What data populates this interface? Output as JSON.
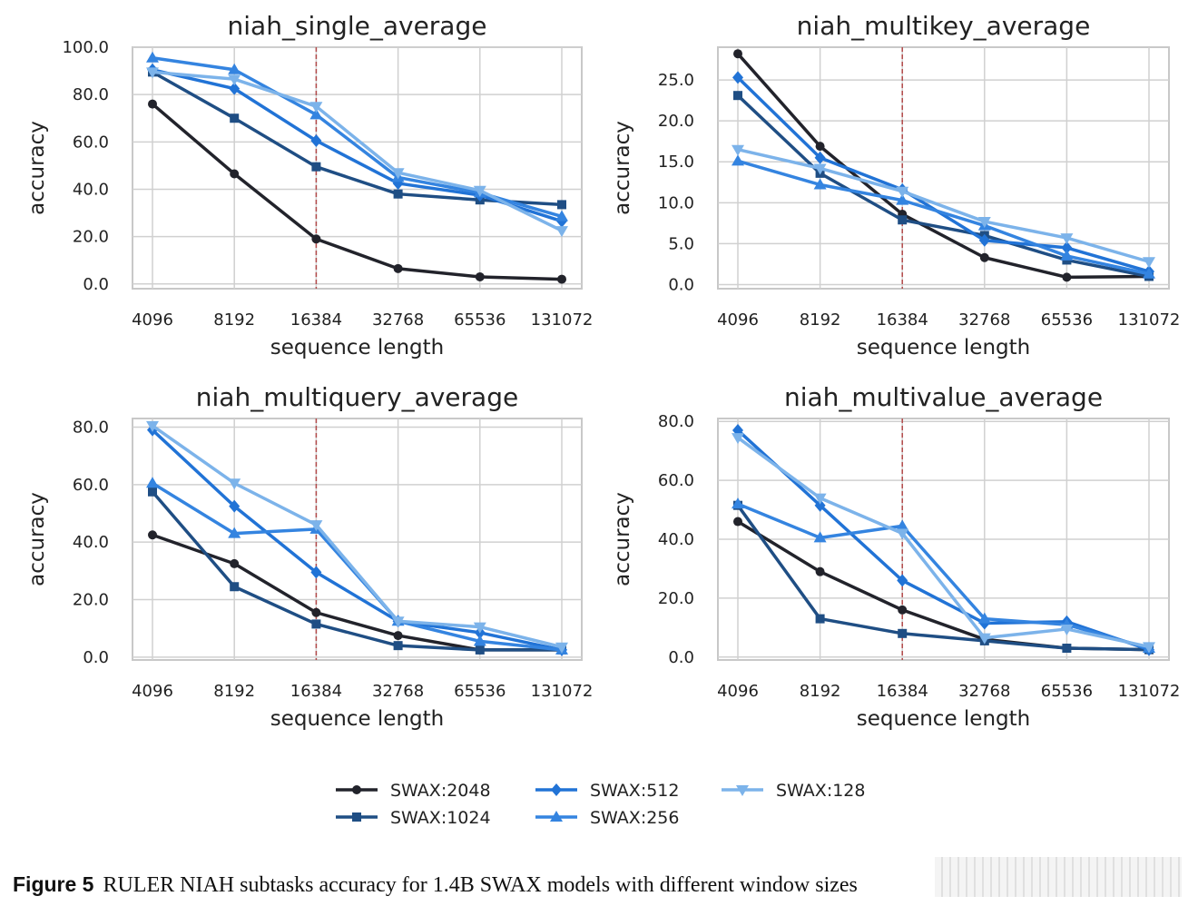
{
  "colors": {
    "SWAX:2048": "#22232b",
    "SWAX:1024": "#1f4e84",
    "SWAX:512": "#2173d6",
    "SWAX:256": "#3484e0",
    "SWAX:128": "#7cb3ea",
    "refline": "#b24a4a",
    "grid": "#d0d0d0",
    "frame": "#c8c8c8"
  },
  "legend": {
    "entries": [
      {
        "label": "SWAX:2048",
        "marker": "circle"
      },
      {
        "label": "SWAX:1024",
        "marker": "square"
      },
      {
        "label": "SWAX:512",
        "marker": "diamond"
      },
      {
        "label": "SWAX:256",
        "marker": "triangle-up"
      },
      {
        "label": "SWAX:128",
        "marker": "triangle-down"
      }
    ]
  },
  "caption": {
    "label": "Figure 5",
    "text": "RULER NIAH subtasks accuracy for 1.4B SWAX models with different window sizes"
  },
  "chart_data": [
    {
      "type": "line",
      "title": "niah_single_average",
      "xlabel": "sequence length",
      "ylabel": "accuracy",
      "categories": [
        "4096",
        "8192",
        "16384",
        "32768",
        "65536",
        "131072"
      ],
      "ylim": [
        -2,
        100
      ],
      "yticks": [
        0.0,
        20.0,
        40.0,
        60.0,
        80.0,
        100.0
      ],
      "ytick_labels": [
        "0.0",
        "20.0",
        "40.0",
        "60.0",
        "80.0",
        "100.0"
      ],
      "vline_category": "16384",
      "series": [
        {
          "name": "SWAX:2048",
          "values": [
            76,
            46.5,
            19,
            6.5,
            3,
            2
          ]
        },
        {
          "name": "SWAX:1024",
          "values": [
            89.5,
            70,
            49.5,
            38,
            35.5,
            33.5
          ]
        },
        {
          "name": "SWAX:512",
          "values": [
            90.5,
            82.5,
            60.5,
            42.5,
            37.5,
            26.5
          ]
        },
        {
          "name": "SWAX:256",
          "values": [
            95.5,
            90.5,
            71.5,
            45,
            38.5,
            28.5
          ]
        },
        {
          "name": "SWAX:128",
          "values": [
            89.5,
            86.5,
            75,
            47,
            39.5,
            22.5
          ]
        }
      ]
    },
    {
      "type": "line",
      "title": "niah_multikey_average",
      "xlabel": "sequence length",
      "ylabel": "accuracy",
      "categories": [
        "4096",
        "8192",
        "16384",
        "32768",
        "65536",
        "131072"
      ],
      "ylim": [
        -0.5,
        29
      ],
      "yticks": [
        0.0,
        5.0,
        10.0,
        15.0,
        20.0,
        25.0
      ],
      "ytick_labels": [
        "0.0",
        "5.0",
        "10.0",
        "15.0",
        "20.0",
        "25.0"
      ],
      "vline_category": "16384",
      "series": [
        {
          "name": "SWAX:2048",
          "values": [
            28.2,
            16.9,
            8.6,
            3.3,
            0.9,
            1
          ]
        },
        {
          "name": "SWAX:1024",
          "values": [
            23.1,
            13.6,
            7.9,
            6,
            3,
            1
          ]
        },
        {
          "name": "SWAX:512",
          "values": [
            25.3,
            15.5,
            11.6,
            5.4,
            4.5,
            1.6
          ]
        },
        {
          "name": "SWAX:256",
          "values": [
            15.1,
            12.2,
            10.3,
            7.2,
            3.5,
            1.3
          ]
        },
        {
          "name": "SWAX:128",
          "values": [
            16.5,
            14.2,
            11.4,
            7.7,
            5.7,
            2.8
          ]
        }
      ]
    },
    {
      "type": "line",
      "title": "niah_multiquery_average",
      "xlabel": "sequence length",
      "ylabel": "accuracy",
      "categories": [
        "4096",
        "8192",
        "16384",
        "32768",
        "65536",
        "131072"
      ],
      "ylim": [
        -1,
        83
      ],
      "yticks": [
        0.0,
        20.0,
        40.0,
        60.0,
        80.0
      ],
      "ytick_labels": [
        "0.0",
        "20.0",
        "40.0",
        "60.0",
        "80.0"
      ],
      "vline_category": "16384",
      "series": [
        {
          "name": "SWAX:2048",
          "values": [
            42.5,
            32.5,
            15.5,
            7.5,
            2.5,
            2.5
          ]
        },
        {
          "name": "SWAX:1024",
          "values": [
            57.5,
            24.5,
            11.5,
            4,
            2.5,
            2.5
          ]
        },
        {
          "name": "SWAX:512",
          "values": [
            79,
            52.5,
            29.5,
            12.5,
            8.5,
            2.5
          ]
        },
        {
          "name": "SWAX:256",
          "values": [
            60.5,
            43,
            44.5,
            12.5,
            5.5,
            2.5
          ]
        },
        {
          "name": "SWAX:128",
          "values": [
            80.5,
            60.5,
            46,
            12.5,
            10.5,
            3.5
          ]
        }
      ]
    },
    {
      "type": "line",
      "title": "niah_multivalue_average",
      "xlabel": "sequence length",
      "ylabel": "accuracy",
      "categories": [
        "4096",
        "8192",
        "16384",
        "32768",
        "65536",
        "131072"
      ],
      "ylim": [
        -1,
        81
      ],
      "yticks": [
        0.0,
        20.0,
        40.0,
        60.0,
        80.0
      ],
      "ytick_labels": [
        "0.0",
        "20.0",
        "40.0",
        "60.0",
        "80.0"
      ],
      "vline_category": "16384",
      "series": [
        {
          "name": "SWAX:2048",
          "values": [
            46,
            29,
            16,
            6,
            3,
            2.5
          ]
        },
        {
          "name": "SWAX:1024",
          "values": [
            51.5,
            13,
            8,
            5.5,
            3,
            2.5
          ]
        },
        {
          "name": "SWAX:512",
          "values": [
            77,
            51.5,
            26,
            11.5,
            12,
            2.5
          ]
        },
        {
          "name": "SWAX:256",
          "values": [
            52,
            40.5,
            44.5,
            13,
            11,
            3
          ]
        },
        {
          "name": "SWAX:128",
          "values": [
            74.5,
            54,
            42,
            6.5,
            9.5,
            3.5
          ]
        }
      ]
    }
  ]
}
